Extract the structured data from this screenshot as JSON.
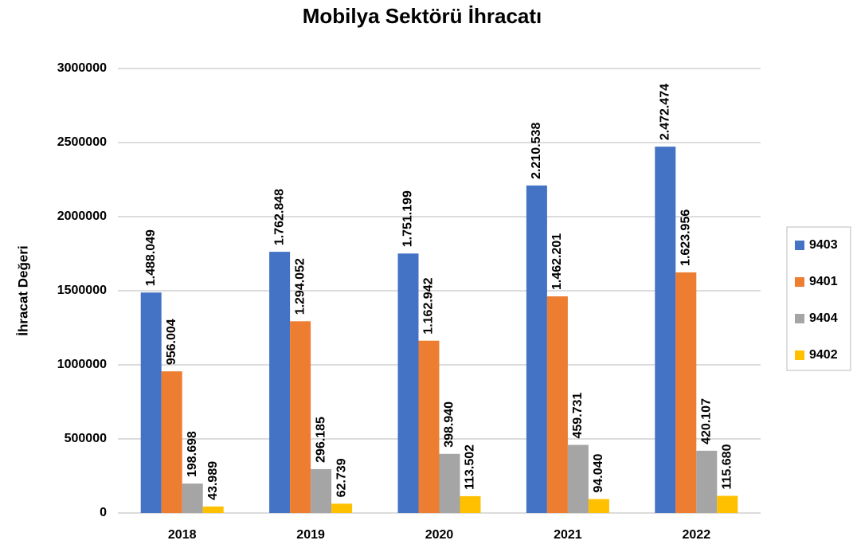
{
  "chart_data": {
    "type": "bar",
    "title": "Mobilya Sektörü İhracatı",
    "y_label": "İhracat Değeri",
    "categories": [
      "2018",
      "2019",
      "2020",
      "2021",
      "2022"
    ],
    "series": [
      {
        "name": "9403",
        "color": "#4472c4",
        "values": [
          1488049,
          1762848,
          1751199,
          2210538,
          2472474
        ],
        "value_labels": [
          "1.488.049",
          "1.762.848",
          "1.751.199",
          "2.210.538",
          "2.472.474"
        ]
      },
      {
        "name": "9401",
        "color": "#ed7d31",
        "values": [
          956004,
          1294052,
          1162942,
          1462201,
          1623956
        ],
        "value_labels": [
          "956.004",
          "1.294.052",
          "1.162.942",
          "1.462.201",
          "1.623.956"
        ]
      },
      {
        "name": "9404",
        "color": "#a5a5a5",
        "values": [
          198698,
          296185,
          398940,
          459731,
          420107
        ],
        "value_labels": [
          "198.698",
          "296.185",
          "398.940",
          "459.731",
          "420.107"
        ]
      },
      {
        "name": "9402",
        "color": "#ffc000",
        "values": [
          43989,
          62739,
          113502,
          94040,
          115680
        ],
        "value_labels": [
          "43.989",
          "62.739",
          "113.502",
          "94.040",
          "115.680"
        ]
      }
    ],
    "ylim": [
      0,
      3000000
    ],
    "yticks": [
      0,
      500000,
      1000000,
      1500000,
      2000000,
      2500000,
      3000000
    ],
    "grid": true,
    "legend": "right"
  }
}
